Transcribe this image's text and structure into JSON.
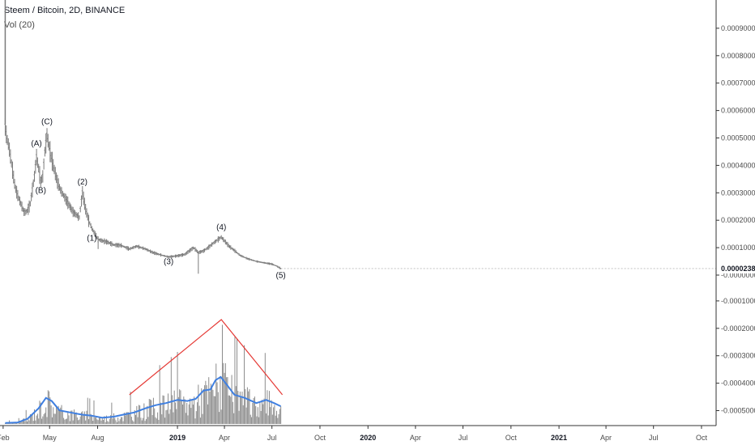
{
  "legend": {
    "title": "Steem / Bitcoin, 2D, BINANCE",
    "volume": "Vol (20)"
  },
  "colors": {
    "bar": "#7a7a7a",
    "volume_bar": "#8c8c8c",
    "volume_ma": "#3f7fe0",
    "triangle": "#e53935",
    "axis": "#333333"
  },
  "chart_data": [
    {
      "type": "line",
      "title": "Steem / Bitcoin, 2D, BINANCE",
      "series": [
        {
          "name": "Steem / Bitcoin",
          "x": [
            "2018-02-05",
            "2018-02-08",
            "2018-02-12",
            "2018-02-16",
            "2018-02-20",
            "2018-02-24",
            "2018-03-01",
            "2018-03-05",
            "2018-03-09",
            "2018-03-13",
            "2018-03-17",
            "2018-03-21",
            "2018-03-25",
            "2018-03-29",
            "2018-04-02",
            "2018-04-06",
            "2018-04-10",
            "2018-04-14",
            "2018-04-18",
            "2018-04-22",
            "2018-04-26",
            "2018-04-30",
            "2018-05-04",
            "2018-05-08",
            "2018-05-12",
            "2018-05-16",
            "2018-05-22",
            "2018-05-28",
            "2018-06-03",
            "2018-06-09",
            "2018-06-15",
            "2018-06-21",
            "2018-06-27",
            "2018-07-03",
            "2018-07-09",
            "2018-07-15",
            "2018-07-21",
            "2018-07-27",
            "2018-08-02",
            "2018-08-10",
            "2018-08-20",
            "2018-09-01",
            "2018-09-15",
            "2018-10-01",
            "2018-10-15",
            "2018-11-01",
            "2018-11-15",
            "2018-12-01",
            "2018-12-15",
            "2019-01-01",
            "2019-01-15",
            "2019-02-01",
            "2019-02-10",
            "2019-02-20",
            "2019-03-01",
            "2019-03-10",
            "2019-03-20",
            "2019-03-26",
            "2019-04-01",
            "2019-04-10",
            "2019-04-20",
            "2019-05-01",
            "2019-05-15",
            "2019-06-01",
            "2019-06-15",
            "2019-07-01",
            "2019-07-10",
            "2019-07-18"
          ],
          "y": [
            0.00054,
            0.0005,
            0.00047,
            0.00042,
            0.00037,
            0.00032,
            0.00029,
            0.00027,
            0.00025,
            0.00023,
            0.00023,
            0.00024,
            0.00026,
            0.00031,
            0.00036,
            0.00043,
            0.00039,
            0.00034,
            0.00036,
            0.00045,
            0.00051,
            0.00047,
            0.00043,
            0.0004,
            0.00037,
            0.00034,
            0.00031,
            0.00029,
            0.00027,
            0.00025,
            0.00023,
            0.00022,
            0.00021,
            0.0003,
            0.00024,
            0.0002,
            0.00017,
            0.00015,
            0.00013,
            0.000125,
            0.00012,
            0.00011,
            0.000108,
            9.5e-05,
            0.000105,
            9.5e-05,
            8.2e-05,
            7.3e-05,
            6.6e-05,
            7e-05,
            7.5e-05,
            0.0001,
            8.2e-05,
            8.8e-05,
            0.0001,
            0.000115,
            0.00013,
            0.000138,
            0.000125,
            0.000105,
            9e-05,
            7.2e-05,
            6e-05,
            5e-05,
            4.5e-05,
            4e-05,
            3.3e-05,
            2.38e-05
          ],
          "last_value_label": "0.0000238"
        }
      ],
      "wave_labels": [
        {
          "text": "(A)",
          "x": "2018-04-06",
          "y": 0.00047
        },
        {
          "text": "(B)",
          "x": "2018-04-14",
          "y": 0.0003
        },
        {
          "text": "(C)",
          "x": "2018-04-26",
          "y": 0.00055
        },
        {
          "text": "(1)",
          "x": "2018-07-21",
          "y": 0.000125
        },
        {
          "text": "(2)",
          "x": "2018-07-03",
          "y": 0.00033
        },
        {
          "text": "(3)",
          "x": "2018-12-15",
          "y": 4e-05
        },
        {
          "text": "(4)",
          "x": "2019-03-26",
          "y": 0.000165
        },
        {
          "text": "(5)",
          "x": "2019-07-18",
          "y": -1e-05
        }
      ],
      "ylim": [
        -0.00052,
        0.001
      ],
      "y_ticks": [
        "0.0009000",
        "0.0008000",
        "0.0007000",
        "0.0006000",
        "0.0005000",
        "0.0004000",
        "0.0003000",
        "0.0002000",
        "0.0001000",
        "-0.0000000",
        "-0.0001000",
        "-0.0002000",
        "-0.0003000",
        "-0.0004000",
        "-0.0005000"
      ],
      "y_tick_values": [
        0.0009,
        0.0008,
        0.0007,
        0.0006,
        0.0005,
        0.0004,
        0.0003,
        0.0002,
        0.0001,
        0.0,
        -0.0001,
        -0.0002,
        -0.0003,
        -0.0004,
        -0.0005
      ],
      "x_ticks": [
        "Feb",
        "May",
        "Aug",
        "2019",
        "Apr",
        "Jul",
        "Oct",
        "2020",
        "Apr",
        "Jul",
        "Oct",
        "2021",
        "Apr",
        "Jul",
        "Oct"
      ],
      "x_tick_dates": [
        "2018-02-01",
        "2018-05-01",
        "2018-08-01",
        "2019-01-01",
        "2019-04-01",
        "2019-07-01",
        "2019-10-01",
        "2020-01-01",
        "2020-04-01",
        "2020-07-01",
        "2020-10-01",
        "2021-01-01",
        "2021-04-01",
        "2021-07-01",
        "2021-10-01"
      ],
      "x_tick_bold": [
        "2019",
        "2020",
        "2021"
      ],
      "xlim": [
        "2018-01-26",
        "2021-10-29"
      ]
    },
    {
      "type": "bar",
      "title": "Vol (20)",
      "series": [
        {
          "name": "volume_ma",
          "x": [
            "2018-02-05",
            "2018-03-01",
            "2018-03-20",
            "2018-04-10",
            "2018-04-24",
            "2018-05-05",
            "2018-05-20",
            "2018-06-10",
            "2018-07-01",
            "2018-07-20",
            "2018-08-10",
            "2018-09-01",
            "2018-09-20",
            "2018-10-10",
            "2018-11-01",
            "2018-11-20",
            "2018-12-10",
            "2019-01-01",
            "2019-01-20",
            "2019-02-05",
            "2019-02-20",
            "2019-03-05",
            "2019-03-15",
            "2019-03-25",
            "2019-04-05",
            "2019-04-20",
            "2019-05-10",
            "2019-06-01",
            "2019-06-20",
            "2019-07-05",
            "2019-07-18"
          ],
          "values": [
            0.01,
            0.015,
            0.05,
            0.15,
            0.25,
            0.22,
            0.13,
            0.11,
            0.09,
            0.08,
            0.06,
            0.07,
            0.09,
            0.11,
            0.15,
            0.18,
            0.2,
            0.23,
            0.22,
            0.24,
            0.32,
            0.33,
            0.42,
            0.45,
            0.38,
            0.28,
            0.25,
            0.2,
            0.23,
            0.2,
            0.17
          ]
        }
      ],
      "annotation": {
        "type": "triangle",
        "points": [
          [
            "2018-10-01",
            0.28
          ],
          [
            "2019-03-26",
            1.0
          ],
          [
            "2019-07-21",
            0.28
          ]
        ]
      },
      "ylim": [
        0,
        1.0
      ]
    }
  ]
}
